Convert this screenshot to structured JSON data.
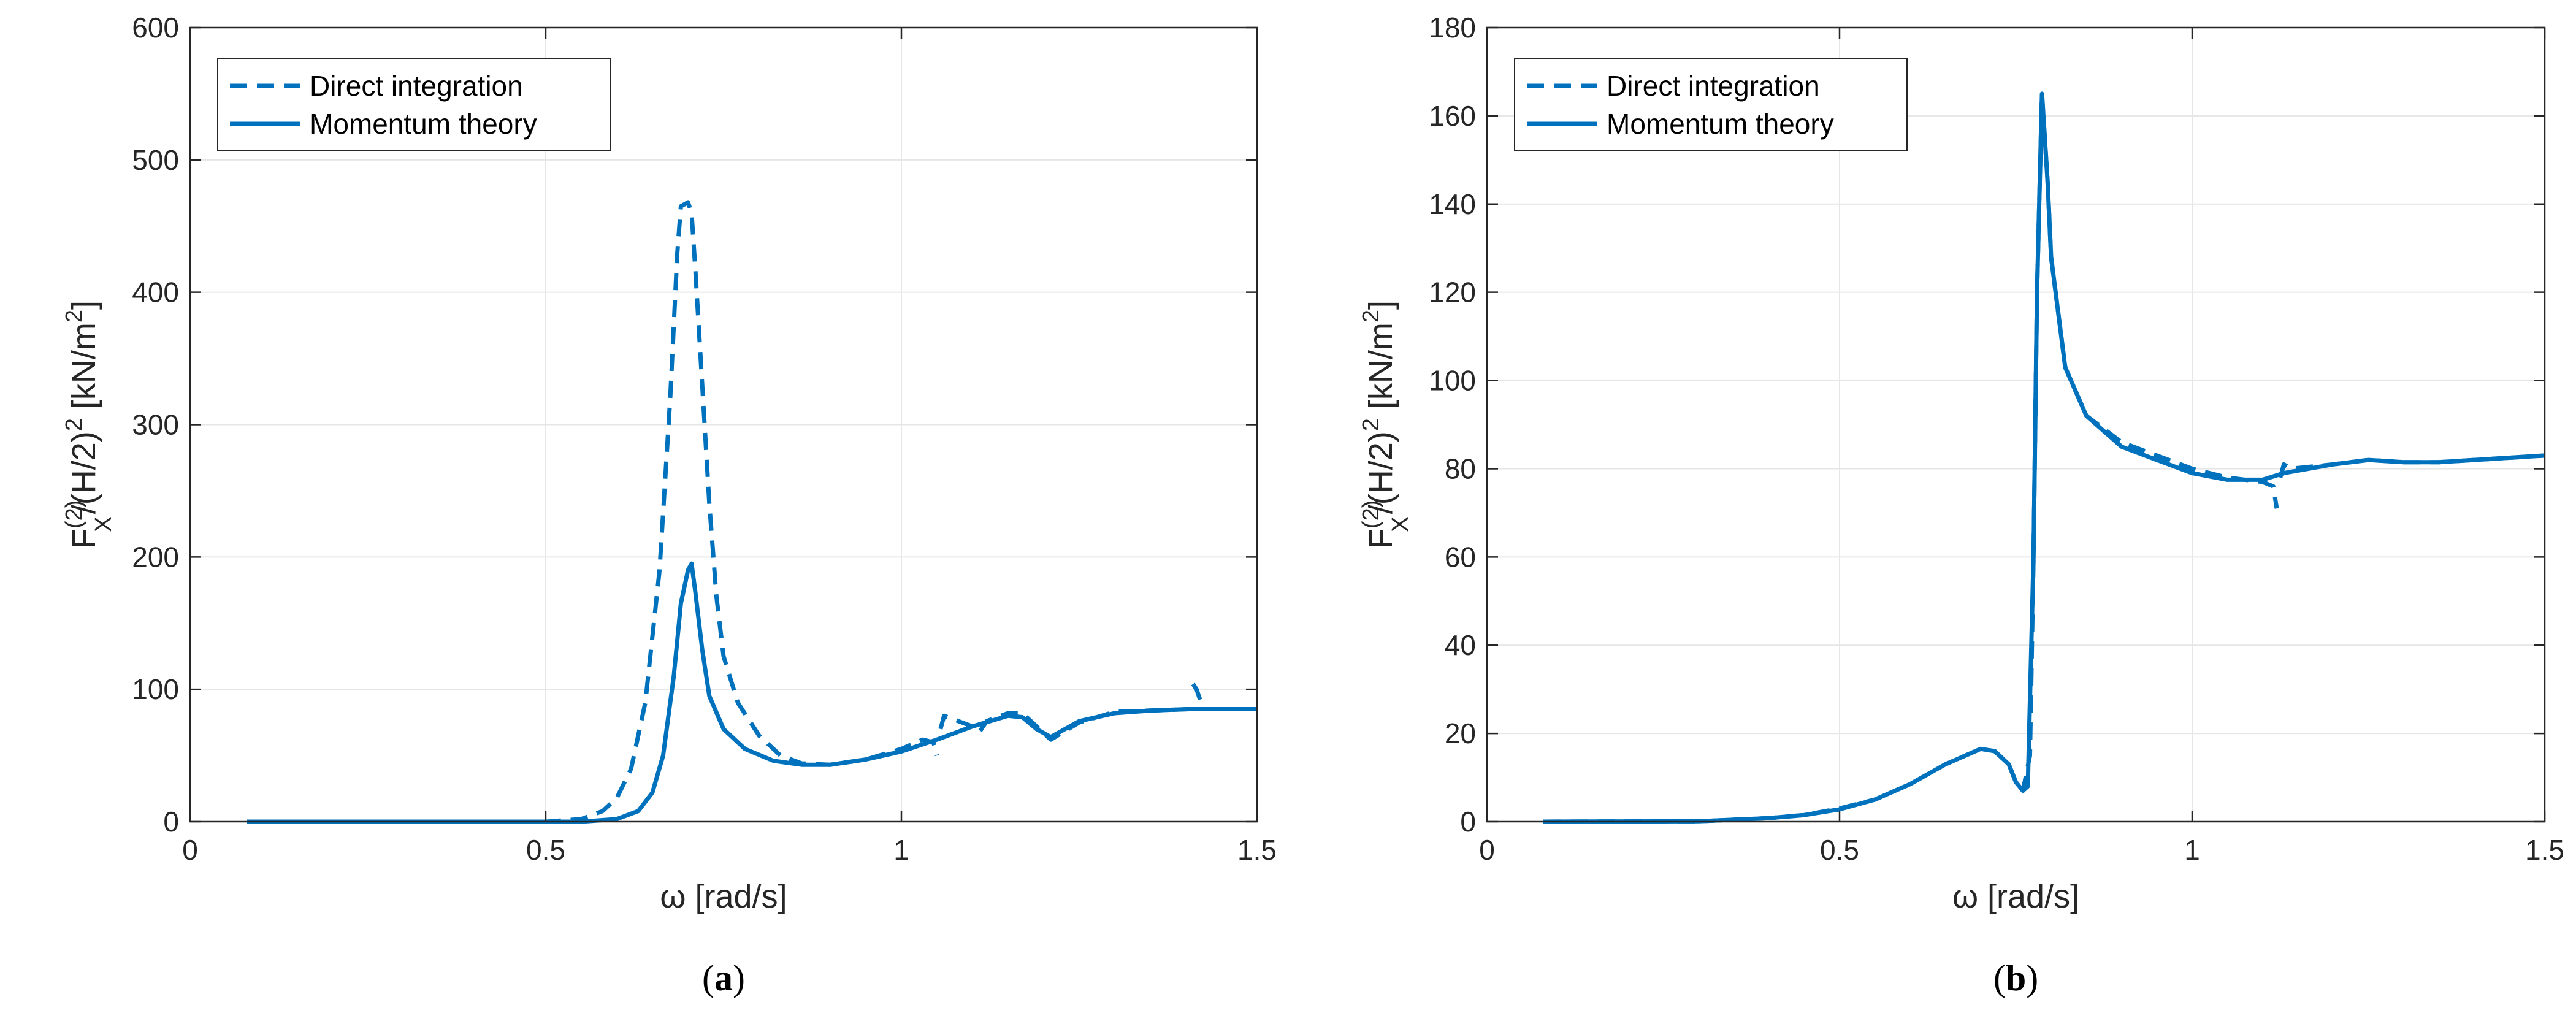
{
  "colors": {
    "series": "#0072BD",
    "grid": "#e6e6e6",
    "axis": "#262626"
  },
  "chart_data": [
    {
      "type": "line",
      "panel_label": "a",
      "xlabel": "ω  [rad/s]",
      "ylabel": "F_X^(2)/(H/2)^2 [kN/m^2]",
      "ylabel_parts": {
        "base": "F",
        "sup1": "(2)",
        "sub1": "X",
        "mid": "/(H/2)",
        "sup2": "2",
        "unit_start": " [kN/m",
        "sup3": "2",
        "unit_end": "]"
      },
      "xlim": [
        0,
        1.5
      ],
      "ylim": [
        0,
        600
      ],
      "xticks": [
        0,
        0.5,
        1,
        1.5
      ],
      "xtick_labels": [
        "0",
        "0.5",
        "1",
        "1.5"
      ],
      "yticks": [
        0,
        100,
        200,
        300,
        400,
        500,
        600
      ],
      "ytick_labels": [
        "0",
        "100",
        "200",
        "300",
        "400",
        "500",
        "600"
      ],
      "grid": true,
      "legend_position": "top-left",
      "series": [
        {
          "name": "Direct integration",
          "style": "dashed",
          "segments": [
            [
              [
                0.08,
                0
              ],
              [
                0.5,
                0
              ],
              [
                0.55,
                2
              ],
              [
                0.58,
                8
              ],
              [
                0.6,
                18
              ],
              [
                0.62,
                40
              ],
              [
                0.64,
                90
              ],
              [
                0.66,
                190
              ],
              [
                0.675,
                320
              ],
              [
                0.685,
                430
              ],
              [
                0.69,
                465
              ],
              [
                0.7,
                468
              ],
              [
                0.705,
                460
              ],
              [
                0.71,
                420
              ],
              [
                0.72,
                330
              ],
              [
                0.73,
                240
              ],
              [
                0.74,
                170
              ],
              [
                0.75,
                125
              ],
              [
                0.77,
                90
              ],
              [
                0.8,
                65
              ],
              [
                0.83,
                50
              ],
              [
                0.86,
                44
              ],
              [
                0.9,
                43
              ],
              [
                0.95,
                47
              ],
              [
                1.0,
                55
              ],
              [
                1.03,
                62
              ],
              [
                1.045,
                60
              ],
              [
                1.05,
                50
              ]
            ],
            [
              [
                1.055,
                70
              ],
              [
                1.06,
                80
              ],
              [
                1.08,
                76
              ],
              [
                1.1,
                72
              ],
              [
                1.11,
                68
              ],
              [
                1.12,
                76
              ],
              [
                1.15,
                82
              ],
              [
                1.17,
                82
              ],
              [
                1.19,
                72
              ],
              [
                1.21,
                62
              ],
              [
                1.25,
                75
              ],
              [
                1.3,
                83
              ],
              [
                1.35,
                84
              ],
              [
                1.405,
                85
              ]
            ],
            [
              [
                1.41,
                104
              ],
              [
                1.415,
                100
              ],
              [
                1.42,
                92
              ]
            ]
          ]
        },
        {
          "name": "Momentum theory",
          "style": "solid",
          "segments": [
            [
              [
                0.08,
                0
              ],
              [
                0.55,
                0
              ],
              [
                0.6,
                2
              ],
              [
                0.63,
                8
              ],
              [
                0.65,
                22
              ],
              [
                0.665,
                50
              ],
              [
                0.68,
                110
              ],
              [
                0.69,
                165
              ],
              [
                0.7,
                190
              ],
              [
                0.705,
                195
              ],
              [
                0.71,
                175
              ],
              [
                0.72,
                130
              ],
              [
                0.73,
                95
              ],
              [
                0.75,
                70
              ],
              [
                0.78,
                55
              ],
              [
                0.82,
                46
              ],
              [
                0.86,
                43
              ],
              [
                0.9,
                43
              ],
              [
                0.95,
                47
              ],
              [
                1.0,
                53
              ],
              [
                1.05,
                62
              ],
              [
                1.1,
                72
              ],
              [
                1.15,
                80
              ],
              [
                1.17,
                79
              ],
              [
                1.19,
                70
              ],
              [
                1.21,
                64
              ],
              [
                1.25,
                76
              ],
              [
                1.3,
                82
              ],
              [
                1.35,
                84
              ],
              [
                1.4,
                85
              ],
              [
                1.45,
                85
              ],
              [
                1.5,
                85
              ]
            ]
          ]
        }
      ]
    },
    {
      "type": "line",
      "panel_label": "b",
      "xlabel": "ω  [rad/s]",
      "ylabel": "F_X^(2)/(H/2)^2 [kN/m^2]",
      "ylabel_parts": {
        "base": "F",
        "sup1": "(2)",
        "sub1": "X",
        "mid": "/(H/2)",
        "sup2": "2",
        "unit_start": " [kN/m",
        "sup3": "2",
        "unit_end": "]"
      },
      "xlim": [
        0,
        1.5
      ],
      "ylim": [
        0,
        180
      ],
      "xticks": [
        0,
        0.5,
        1,
        1.5
      ],
      "xtick_labels": [
        "0",
        "0.5",
        "1",
        "1.5"
      ],
      "yticks": [
        0,
        20,
        40,
        60,
        80,
        100,
        120,
        140,
        160,
        180
      ],
      "ytick_labels": [
        "0",
        "20",
        "40",
        "60",
        "80",
        "100",
        "120",
        "140",
        "160",
        "180"
      ],
      "grid": true,
      "legend_position": "top-left",
      "series": [
        {
          "name": "Direct integration",
          "style": "dashed",
          "segments": [
            [
              [
                0.08,
                0
              ],
              [
                0.3,
                0.1
              ],
              [
                0.4,
                0.8
              ],
              [
                0.45,
                1.5
              ],
              [
                0.5,
                3
              ],
              [
                0.55,
                5
              ],
              [
                0.6,
                8.5
              ],
              [
                0.65,
                13
              ],
              [
                0.7,
                16.5
              ],
              [
                0.72,
                16
              ],
              [
                0.74,
                13
              ],
              [
                0.75,
                9
              ],
              [
                0.76,
                7
              ],
              [
                0.77,
                15
              ],
              [
                0.775,
                60
              ],
              [
                0.78,
                120
              ],
              [
                0.787,
                165
              ],
              [
                0.795,
                145
              ],
              [
                0.8,
                128
              ],
              [
                0.82,
                103
              ],
              [
                0.85,
                92
              ],
              [
                0.9,
                86
              ],
              [
                0.95,
                83
              ],
              [
                1.0,
                80
              ],
              [
                1.05,
                78
              ],
              [
                1.1,
                77
              ],
              [
                1.115,
                76
              ],
              [
                1.12,
                71
              ]
            ],
            [
              [
                1.125,
                78
              ],
              [
                1.13,
                81
              ],
              [
                1.14,
                80
              ],
              [
                1.2,
                81
              ],
              [
                1.25,
                82
              ],
              [
                1.3,
                81.5
              ],
              [
                1.35,
                81.5
              ],
              [
                1.4,
                82
              ],
              [
                1.45,
                82.5
              ],
              [
                1.5,
                83
              ]
            ]
          ]
        },
        {
          "name": "Momentum theory",
          "style": "solid",
          "segments": [
            [
              [
                0.08,
                0
              ],
              [
                0.3,
                0.1
              ],
              [
                0.4,
                0.8
              ],
              [
                0.45,
                1.5
              ],
              [
                0.5,
                2.8
              ],
              [
                0.55,
                5
              ],
              [
                0.6,
                8.5
              ],
              [
                0.65,
                13
              ],
              [
                0.7,
                16.5
              ],
              [
                0.72,
                16
              ],
              [
                0.74,
                13
              ],
              [
                0.75,
                9
              ],
              [
                0.76,
                7
              ],
              [
                0.767,
                8
              ],
              [
                0.775,
                60
              ],
              [
                0.78,
                120
              ],
              [
                0.787,
                165
              ],
              [
                0.795,
                145
              ],
              [
                0.8,
                128
              ],
              [
                0.82,
                103
              ],
              [
                0.85,
                92
              ],
              [
                0.9,
                85
              ],
              [
                0.95,
                82
              ],
              [
                1.0,
                79
              ],
              [
                1.05,
                77.5
              ],
              [
                1.1,
                77.5
              ],
              [
                1.13,
                79
              ],
              [
                1.2,
                81
              ],
              [
                1.25,
                82
              ],
              [
                1.3,
                81.5
              ],
              [
                1.35,
                81.5
              ],
              [
                1.4,
                82
              ],
              [
                1.45,
                82.5
              ],
              [
                1.5,
                83
              ]
            ]
          ]
        }
      ]
    }
  ]
}
